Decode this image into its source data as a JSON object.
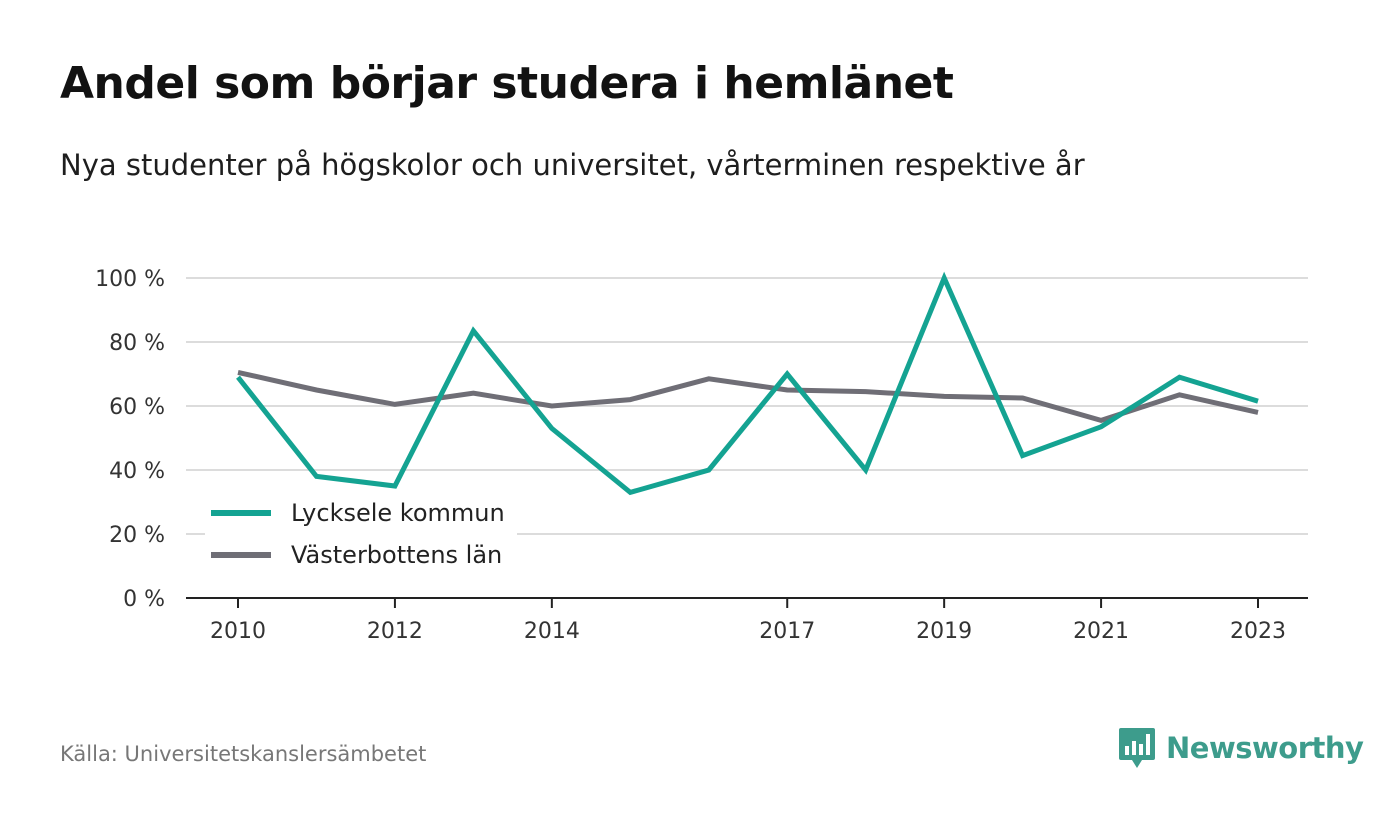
{
  "header": {
    "title": "Andel som börjar studera i hemlänet",
    "subtitle": "Nya studenter på högskolor och universitet, vårterminen respektive år"
  },
  "footer": {
    "source": "Källa: Universitetskanslersämbetet",
    "brand": "Newsworthy",
    "brand_icon": "bar-chart-speech-bubble-icon"
  },
  "colors": {
    "series_1": "#14a392",
    "series_2": "#6f6e76",
    "grid": "#dcdcdc",
    "axis": "#222222",
    "brand": "#3d9c8c"
  },
  "chart_data": {
    "type": "line",
    "title": "Andel som börjar studera i hemlänet",
    "subtitle": "Nya studenter på högskolor och universitet, vårterminen respektive år",
    "x": [
      2010,
      2011,
      2012,
      2013,
      2014,
      2015,
      2016,
      2017,
      2018,
      2019,
      2020,
      2021,
      2022,
      2023
    ],
    "x_tick_labels": [
      "2010",
      "2012",
      "2014",
      "2017",
      "2019",
      "2021",
      "2023"
    ],
    "y_tick_labels": [
      "0 %",
      "20 %",
      "40 %",
      "60 %",
      "80 %",
      "100 %"
    ],
    "y_ticks": [
      0,
      20,
      40,
      60,
      80,
      100
    ],
    "ylim": [
      0,
      100
    ],
    "grid": true,
    "legend_position": "bottom-left",
    "series": [
      {
        "name": "Lycksele kommun",
        "values": [
          69,
          38,
          35,
          83.5,
          53,
          33,
          40,
          70,
          40,
          100,
          44.5,
          53.5,
          69,
          61.5
        ]
      },
      {
        "name": "Västerbottens län",
        "values": [
          70.5,
          65,
          60.5,
          64,
          60,
          62,
          68.5,
          65,
          64.5,
          63,
          62.5,
          55.5,
          63.5,
          58
        ]
      }
    ]
  }
}
